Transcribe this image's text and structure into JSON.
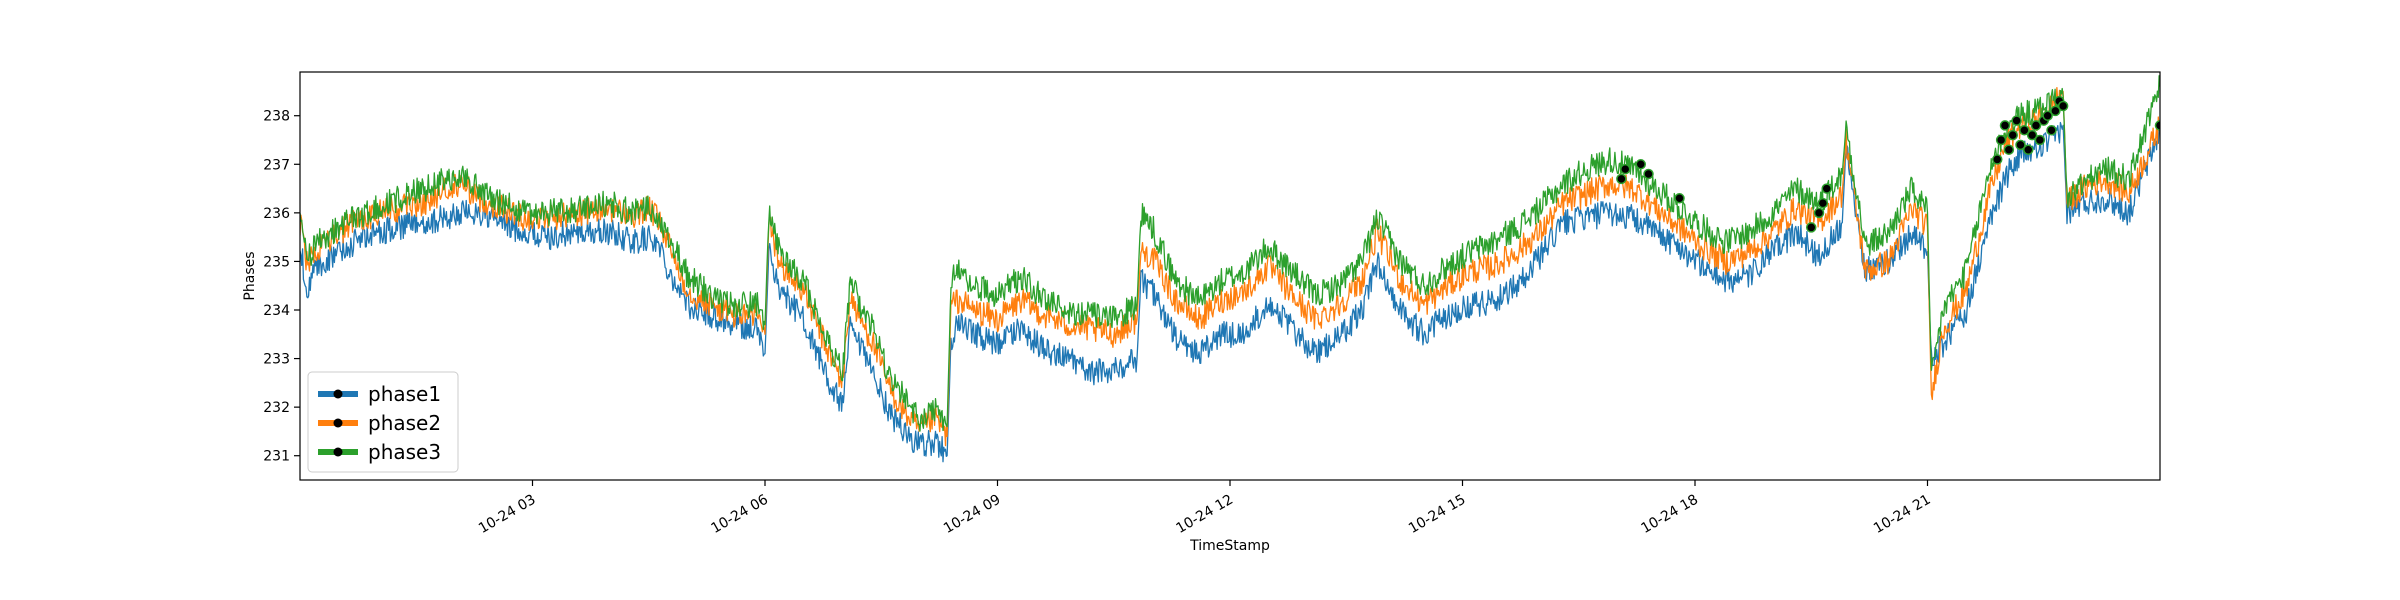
{
  "chart_data": {
    "type": "line",
    "title": "",
    "xlabel": "TimeStamp",
    "ylabel": "Phases",
    "x_unit": "hours on 10-24",
    "xlim": [
      0,
      24
    ],
    "ylim": [
      230.5,
      238.9
    ],
    "grid": false,
    "legend_position": "lower-left",
    "x_ticks": [
      {
        "x": 3,
        "label": "10-24 03"
      },
      {
        "x": 6,
        "label": "10-24 06"
      },
      {
        "x": 9,
        "label": "10-24 09"
      },
      {
        "x": 12,
        "label": "10-24 12"
      },
      {
        "x": 15,
        "label": "10-24 15"
      },
      {
        "x": 18,
        "label": "10-24 18"
      },
      {
        "x": 21,
        "label": "10-24 21"
      }
    ],
    "y_ticks": [
      {
        "y": 231,
        "label": "231"
      },
      {
        "y": 232,
        "label": "232"
      },
      {
        "y": 233,
        "label": "233"
      },
      {
        "y": 234,
        "label": "234"
      },
      {
        "y": 235,
        "label": "235"
      },
      {
        "y": 236,
        "label": "236"
      },
      {
        "y": 237,
        "label": "237"
      },
      {
        "y": 238,
        "label": "238"
      }
    ],
    "x": [
      0,
      0.1,
      0.2,
      0.4,
      0.7,
      1.0,
      1.3,
      1.6,
      1.9,
      2.1,
      2.3,
      2.6,
      2.9,
      3.2,
      3.6,
      4.0,
      4.3,
      4.5,
      4.6,
      4.8,
      5.0,
      5.3,
      5.6,
      5.9,
      6.0,
      6.05,
      6.2,
      6.5,
      6.8,
      7.0,
      7.1,
      7.2,
      7.4,
      7.6,
      7.8,
      8.0,
      8.2,
      8.35,
      8.4,
      8.5,
      8.7,
      9.0,
      9.3,
      9.6,
      9.9,
      10.2,
      10.5,
      10.8,
      10.85,
      11.0,
      11.3,
      11.6,
      11.9,
      12.2,
      12.5,
      12.8,
      13.1,
      13.4,
      13.7,
      13.9,
      14.2,
      14.5,
      14.8,
      15.1,
      15.4,
      15.7,
      16.0,
      16.3,
      16.6,
      16.9,
      17.2,
      17.5,
      17.8,
      18.1,
      18.4,
      18.7,
      19.0,
      19.3,
      19.6,
      19.9,
      19.95,
      20.2,
      20.5,
      20.8,
      21.0,
      21.05,
      21.2,
      21.5,
      21.8,
      22.0,
      22.2,
      22.4,
      22.6,
      22.75,
      22.8,
      23.0,
      23.3,
      23.6,
      24.0
    ],
    "series": [
      {
        "name": "phase1",
        "color": "#1f77b4",
        "values": [
          235.3,
          234.4,
          234.8,
          235.1,
          235.4,
          235.6,
          235.7,
          235.8,
          235.9,
          236.0,
          236.0,
          235.8,
          235.6,
          235.5,
          235.6,
          235.6,
          235.4,
          235.5,
          235.4,
          234.7,
          234.1,
          233.9,
          233.7,
          233.6,
          233.1,
          235.2,
          234.4,
          233.8,
          232.6,
          232.0,
          233.6,
          233.3,
          232.7,
          231.9,
          231.5,
          231.2,
          231.3,
          231.0,
          233.4,
          233.7,
          233.5,
          233.3,
          233.6,
          233.2,
          233.0,
          232.7,
          232.8,
          233.0,
          234.6,
          234.4,
          233.4,
          233.1,
          233.5,
          233.5,
          234.2,
          233.6,
          233.1,
          233.4,
          234.0,
          235.0,
          234.0,
          233.5,
          233.9,
          234.1,
          234.2,
          234.5,
          235.1,
          235.8,
          235.9,
          236.0,
          235.9,
          235.6,
          235.3,
          234.9,
          234.6,
          234.7,
          235.2,
          235.6,
          235.1,
          235.8,
          237.4,
          234.8,
          235.0,
          235.6,
          235.2,
          232.9,
          233.3,
          234.0,
          235.8,
          236.7,
          237.2,
          237.3,
          237.5,
          237.8,
          236.0,
          236.2,
          236.3,
          236.0,
          237.7
        ]
      },
      {
        "name": "phase2",
        "color": "#ff7f0e",
        "values": [
          235.8,
          234.9,
          235.2,
          235.5,
          235.8,
          236.0,
          236.1,
          236.2,
          236.5,
          236.6,
          236.3,
          236.1,
          235.9,
          235.9,
          236.0,
          236.1,
          235.9,
          236.1,
          235.9,
          235.2,
          234.4,
          234.1,
          233.9,
          233.9,
          233.5,
          235.8,
          234.9,
          234.4,
          233.2,
          232.5,
          234.3,
          233.9,
          233.3,
          232.4,
          231.9,
          231.5,
          231.8,
          231.4,
          234.1,
          234.2,
          234.0,
          233.8,
          234.2,
          233.9,
          233.7,
          233.6,
          233.5,
          233.8,
          235.2,
          235.1,
          234.2,
          233.8,
          234.2,
          234.4,
          234.9,
          234.3,
          233.8,
          234.1,
          234.6,
          235.6,
          234.6,
          234.1,
          234.5,
          234.8,
          234.9,
          235.2,
          235.6,
          236.2,
          236.4,
          236.6,
          236.5,
          236.1,
          235.7,
          235.3,
          235.0,
          235.2,
          235.6,
          236.1,
          235.8,
          236.4,
          237.5,
          234.8,
          235.0,
          236.1,
          235.7,
          232.2,
          233.6,
          234.4,
          236.4,
          237.4,
          237.8,
          237.9,
          238.2,
          238.5,
          236.2,
          236.5,
          236.7,
          236.4,
          237.8
        ]
      },
      {
        "name": "phase3",
        "color": "#2ca02c",
        "values": [
          235.9,
          235.0,
          235.4,
          235.6,
          235.9,
          236.1,
          236.3,
          236.5,
          236.7,
          236.8,
          236.5,
          236.2,
          236.0,
          236.0,
          236.1,
          236.2,
          236.0,
          236.1,
          236.0,
          235.4,
          234.7,
          234.3,
          234.1,
          234.1,
          233.7,
          236.0,
          235.1,
          234.6,
          233.4,
          232.7,
          234.6,
          234.2,
          233.6,
          232.6,
          232.2,
          231.7,
          232.0,
          231.6,
          234.6,
          234.8,
          234.5,
          234.3,
          234.7,
          234.2,
          234.0,
          233.9,
          233.8,
          234.1,
          236.0,
          235.7,
          234.6,
          234.2,
          234.6,
          234.8,
          235.3,
          234.8,
          234.3,
          234.5,
          235.0,
          235.9,
          235.0,
          234.5,
          234.9,
          235.2,
          235.4,
          235.7,
          236.1,
          236.6,
          236.9,
          237.1,
          236.9,
          236.5,
          236.1,
          235.7,
          235.4,
          235.6,
          236.0,
          236.5,
          236.2,
          236.8,
          237.8,
          235.3,
          235.6,
          236.5,
          236.0,
          232.6,
          234.0,
          234.8,
          236.9,
          237.7,
          238.0,
          238.1,
          238.3,
          238.4,
          236.3,
          236.6,
          236.9,
          236.7,
          238.6
        ]
      }
    ],
    "markers": {
      "color": "#000000",
      "points": [
        {
          "x": 17.05,
          "y": 236.7
        },
        {
          "x": 17.1,
          "y": 236.9
        },
        {
          "x": 17.3,
          "y": 237.0
        },
        {
          "x": 17.4,
          "y": 236.8
        },
        {
          "x": 17.8,
          "y": 236.3
        },
        {
          "x": 19.5,
          "y": 235.7
        },
        {
          "x": 19.6,
          "y": 236.0
        },
        {
          "x": 19.65,
          "y": 236.2
        },
        {
          "x": 19.7,
          "y": 236.5
        },
        {
          "x": 21.9,
          "y": 237.1
        },
        {
          "x": 21.95,
          "y": 237.5
        },
        {
          "x": 22.0,
          "y": 237.8
        },
        {
          "x": 22.05,
          "y": 237.3
        },
        {
          "x": 22.1,
          "y": 237.6
        },
        {
          "x": 22.15,
          "y": 237.9
        },
        {
          "x": 22.2,
          "y": 237.4
        },
        {
          "x": 22.25,
          "y": 237.7
        },
        {
          "x": 22.3,
          "y": 237.3
        },
        {
          "x": 22.35,
          "y": 237.6
        },
        {
          "x": 22.4,
          "y": 237.8
        },
        {
          "x": 22.45,
          "y": 237.5
        },
        {
          "x": 22.5,
          "y": 237.9
        },
        {
          "x": 22.55,
          "y": 238.0
        },
        {
          "x": 22.6,
          "y": 237.7
        },
        {
          "x": 22.65,
          "y": 238.1
        },
        {
          "x": 22.7,
          "y": 238.3
        },
        {
          "x": 22.75,
          "y": 238.2
        },
        {
          "x": 24.0,
          "y": 237.8
        }
      ]
    }
  }
}
